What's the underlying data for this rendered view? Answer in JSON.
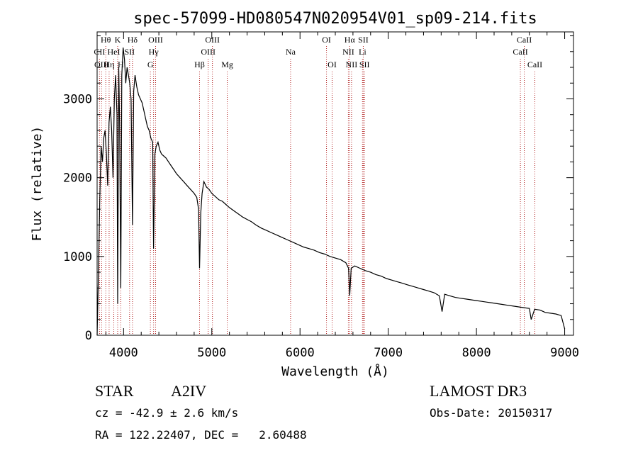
{
  "chart_data": {
    "type": "line",
    "title": "spec-57099-HD080547N020954V01_sp09-214.fits",
    "xlabel": "Wavelength (Å)",
    "ylabel": "Flux (relative)",
    "xlim": [
      3700,
      9100
    ],
    "ylim": [
      0,
      3850
    ],
    "xticks": [
      4000,
      5000,
      6000,
      7000,
      8000,
      9000
    ],
    "xtick_labels": [
      "4000",
      "5000",
      "6000",
      "7000",
      "8000",
      "9000"
    ],
    "yticks": [
      0,
      1000,
      2000,
      3000
    ],
    "ytick_labels": [
      "0",
      "1000",
      "2000",
      "3000"
    ],
    "series": [
      {
        "name": "flux",
        "x": [
          3700,
          3715,
          3730,
          3745,
          3760,
          3775,
          3790,
          3805,
          3820,
          3835,
          3850,
          3865,
          3880,
          3895,
          3910,
          3925,
          3933,
          3945,
          3955,
          3968,
          3980,
          3995,
          4010,
          4025,
          4040,
          4055,
          4070,
          4085,
          4101,
          4115,
          4130,
          4150,
          4170,
          4190,
          4210,
          4230,
          4250,
          4270,
          4290,
          4310,
          4330,
          4340,
          4355,
          4370,
          4390,
          4410,
          4430,
          4450,
          4480,
          4510,
          4540,
          4570,
          4600,
          4640,
          4680,
          4720,
          4760,
          4800,
          4830,
          4850,
          4861,
          4875,
          4890,
          4910,
          4940,
          4970,
          5000,
          5040,
          5080,
          5120,
          5160,
          5200,
          5250,
          5300,
          5350,
          5400,
          5450,
          5500,
          5560,
          5620,
          5680,
          5740,
          5800,
          5860,
          5920,
          5980,
          6040,
          6100,
          6160,
          6220,
          6280,
          6340,
          6400,
          6460,
          6520,
          6550,
          6563,
          6580,
          6620,
          6680,
          6740,
          6800,
          6860,
          6920,
          6980,
          7040,
          7100,
          7160,
          7220,
          7280,
          7340,
          7400,
          7460,
          7520,
          7580,
          7610,
          7640,
          7700,
          7760,
          7820,
          7880,
          7940,
          8000,
          8060,
          8120,
          8180,
          8240,
          8300,
          8360,
          8420,
          8480,
          8540,
          8600,
          8620,
          8660,
          8720,
          8780,
          8840,
          8900,
          8960,
          9000
        ],
        "y": [
          0,
          800,
          1700,
          2400,
          2200,
          2500,
          2600,
          2300,
          1900,
          2700,
          2900,
          2600,
          2000,
          3000,
          3300,
          2800,
          400,
          3400,
          2700,
          600,
          3300,
          3650,
          3500,
          3200,
          3400,
          3300,
          3200,
          3000,
          1400,
          3100,
          3300,
          3150,
          3050,
          3000,
          2950,
          2850,
          2750,
          2650,
          2600,
          2500,
          2450,
          1100,
          2300,
          2400,
          2450,
          2350,
          2300,
          2280,
          2250,
          2200,
          2150,
          2100,
          2050,
          2000,
          1950,
          1900,
          1850,
          1800,
          1750,
          1600,
          850,
          1550,
          1800,
          1950,
          1880,
          1850,
          1800,
          1760,
          1720,
          1700,
          1660,
          1620,
          1580,
          1540,
          1500,
          1470,
          1440,
          1400,
          1360,
          1330,
          1300,
          1270,
          1240,
          1210,
          1180,
          1150,
          1120,
          1100,
          1080,
          1050,
          1030,
          1000,
          980,
          960,
          920,
          850,
          500,
          850,
          880,
          850,
          820,
          800,
          770,
          750,
          720,
          700,
          680,
          660,
          640,
          620,
          600,
          580,
          560,
          540,
          500,
          300,
          520,
          500,
          480,
          470,
          460,
          450,
          440,
          430,
          420,
          410,
          400,
          390,
          380,
          370,
          360,
          350,
          340,
          200,
          330,
          320,
          290,
          280,
          270,
          250,
          80
        ]
      }
    ],
    "lines": [
      {
        "label": "Hθ",
        "wavelength": 3798,
        "row": 0
      },
      {
        "label": "CII",
        "wavelength": 3727,
        "row": 1
      },
      {
        "label": "OIII",
        "wavelength": 3751,
        "row": 2
      },
      {
        "label": "K",
        "wavelength": 3933,
        "row": 0
      },
      {
        "label": "HeI",
        "wavelength": 3889,
        "row": 1
      },
      {
        "label": "Hη",
        "wavelength": 3836,
        "row": 2
      },
      {
        "label": "SII",
        "wavelength": 4068,
        "row": 1
      },
      {
        "label": "H",
        "wavelength": 3968,
        "row": 2
      },
      {
        "label": "Hδ",
        "wavelength": 4101,
        "row": 0
      },
      {
        "label": "OIII",
        "wavelength": 4363,
        "row": 0
      },
      {
        "label": "Hγ",
        "wavelength": 4340,
        "row": 1
      },
      {
        "label": "G",
        "wavelength": 4304,
        "row": 2
      },
      {
        "label": "Hβ",
        "wavelength": 4861,
        "row": 2
      },
      {
        "label": "OIII",
        "wavelength": 5007,
        "row": 0
      },
      {
        "label": "OIII",
        "wavelength": 4959,
        "row": 1
      },
      {
        "label": "Mg",
        "wavelength": 5175,
        "row": 2
      },
      {
        "label": "Na",
        "wavelength": 5893,
        "row": 1
      },
      {
        "label": "OI",
        "wavelength": 6300,
        "row": 0
      },
      {
        "label": "OI",
        "wavelength": 6364,
        "row": 2
      },
      {
        "label": "Hα",
        "wavelength": 6563,
        "row": 0
      },
      {
        "label": "NII",
        "wavelength": 6548,
        "row": 1
      },
      {
        "label": "NII",
        "wavelength": 6584,
        "row": 2
      },
      {
        "label": "SII",
        "wavelength": 6717,
        "row": 0
      },
      {
        "label": "Li",
        "wavelength": 6708,
        "row": 1
      },
      {
        "label": "SII",
        "wavelength": 6731,
        "row": 2
      },
      {
        "label": "CaII",
        "wavelength": 8542,
        "row": 0
      },
      {
        "label": "CaII",
        "wavelength": 8498,
        "row": 1
      },
      {
        "label": "CaII",
        "wavelength": 8662,
        "row": 2
      }
    ]
  },
  "info": {
    "object_class": "STAR",
    "subclass": "A2IV",
    "survey": "LAMOST DR3",
    "redshift": "cz = -42.9 ± 2.6 km/s",
    "obs_date": "Obs-Date: 20150317",
    "coords": "RA = 122.22407, DEC =   2.60488"
  },
  "colors": {
    "spectrum": "#000000",
    "line_markers": "#b22222",
    "axes": "#000000",
    "background": "#ffffff"
  }
}
